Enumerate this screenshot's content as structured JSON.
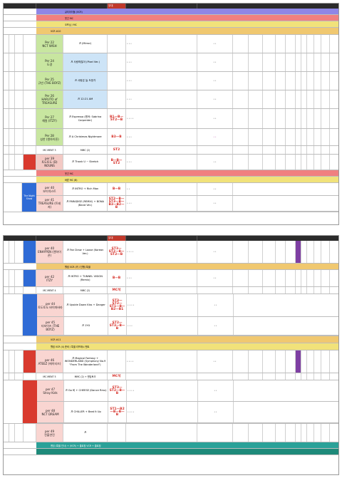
{
  "sheet1": {
    "header_mid": "무대",
    "bands_top": [
      {
        "text": "큐티아이돌 (VCR)",
        "color": "#8f86e6"
      },
      {
        "text": "웃긴 MC",
        "color": "#f08080"
      },
      {
        "text": "오프닝 / MC",
        "color": "#f1e27a"
      },
      {
        "text": "VCR #10",
        "color": "#f0c870"
      }
    ],
    "rows": [
      {
        "num": "Per 22",
        "team": "NCT WISH",
        "song": "♬ (Mirror)",
        "pos": "",
        "col": "#c8e6a0"
      },
      {
        "num": "Per 24",
        "team": "도경",
        "song": "♬ 사랑하잖아 (Pixel Ver.)",
        "pos": "",
        "col": "#c8e6a0"
      },
      {
        "num": "Per 25",
        "team": "규빈 (THE BOYZ)",
        "song": "♬ 사랑은 늘 도망가",
        "pos": "",
        "col": "#c8e6a0"
      },
      {
        "num": "Per 26",
        "team": "HARUTO of TREASURE",
        "song": "♬ 12:21 AM",
        "pos": "",
        "col": "#c8e6a0"
      },
      {
        "num": "Per 27",
        "team": "해원 (ITZY)",
        "song": "♬ Espresso (원곡: Sabrina Carpenter)",
        "pos": "B1—B—ST2—B",
        "col": "#c8e6a0"
      },
      {
        "num": "Per 28",
        "team": "성찬 (엔하이픈)",
        "song": "♬ A Christmas Nightmare",
        "pos": "B3—B",
        "col": "#c8e6a0"
      }
    ],
    "mc_row": {
      "left": "MC MENT 3",
      "mid": "MMC (2)",
      "pos": "ST2"
    },
    "row_39": {
      "num": "per 39",
      "team": "토도토도 (D) NOUNS",
      "song": "♬ Thank U ~ Stretch",
      "pos": "B—B—ST2",
      "col": "#d93a2e"
    },
    "bands_mid": [
      {
        "text": "웃긴 MC",
        "color": "#f08080"
      },
      {
        "text": "바른 MC (B)",
        "color": "#f1e27a"
      }
    ],
    "block_label": "The Night Show",
    "row_40": {
      "num": "per 40",
      "team": "보이넥스트",
      "song": "♬ INTRO + Rich Man",
      "pos": "B—B"
    },
    "row_41": {
      "num": "per 41",
      "team": "TREASURE (트레저)",
      "song": "♬ PARADISE (REMIX) + BONA (Band Ver.)",
      "pos": "ST2—B—ST3—B—B3—B2—B"
    }
  },
  "sheet2": {
    "header_mid": "무대",
    "row_40": {
      "num": "per 40",
      "team": "ENHYPEN (엔하이픈)",
      "song": "♬ Fan Draw + Loose (Korean Ver.)",
      "pos": "ST3—ST2—B—ST2—B"
    },
    "band_vcr": {
      "text": "웰컴 VCR (카 / 진행) 특별",
      "color": "#f0c870"
    },
    "row_42": {
      "num": "per 42",
      "team": "ITZY",
      "song": "♬ INTRO + TUNNEL VISION (Remix)",
      "pos": "B—B"
    },
    "mc_row": {
      "left": "MC MENT 4",
      "mid": "MMC (2)",
      "pos": "MC석"
    },
    "row_44": {
      "num": "per 44",
      "team": "토도토도 바이마바라",
      "song": "♬ Upside Down Kiss + Danger",
      "pos": "ST3—ST2—ST1—B—B2—B1"
    },
    "row_45": {
      "num": "per 45",
      "team": "더보이즈 (THE BOYZ)",
      "song": "♬ 1YU",
      "pos": "ST2—ST3—B—B"
    },
    "band_vcr2": {
      "text": "VCR #11",
      "color": "#f0c870"
    },
    "band_mid": {
      "text": "웰컴 VCR (4) 준비 / 특별 리프레시 멘트",
      "color": "#f1e27a"
    },
    "row_46": {
      "num": "per 46",
      "team": "ATEEZ (에이티즈)",
      "song": "♬ Magical Fantasy + WONDERLAND (Symphony No.9 \"From The Wonderland\")",
      "pos": ""
    },
    "mc_row2": {
      "left": "MC MENT 5",
      "mid": "MMC (2) + 엔딩토크",
      "pos": "MC석"
    },
    "row_47": {
      "num": "per 47",
      "team": "Stray Kids",
      "song": "♬ Go 비 + CHEESE (Dance Rmx)",
      "pos": "ST3—ST2—B—B"
    },
    "row_48": {
      "num": "per 48",
      "team": "NCT DREAM",
      "song": "♬ CHILLER + Beat It Up",
      "pos": "ST1—B2—B—B—B"
    },
    "row_49": {
      "num": "per 49",
      "team": "전출연진",
      "song": "♬",
      "pos": ""
    },
    "band_end": {
      "text": "엔딩 (특별 인사) + (VCR) + 클로징 VCR + 클로징",
      "color": "#2aa198"
    },
    "band_end2": {
      "text": "",
      "color": "#1e8a7a"
    }
  }
}
